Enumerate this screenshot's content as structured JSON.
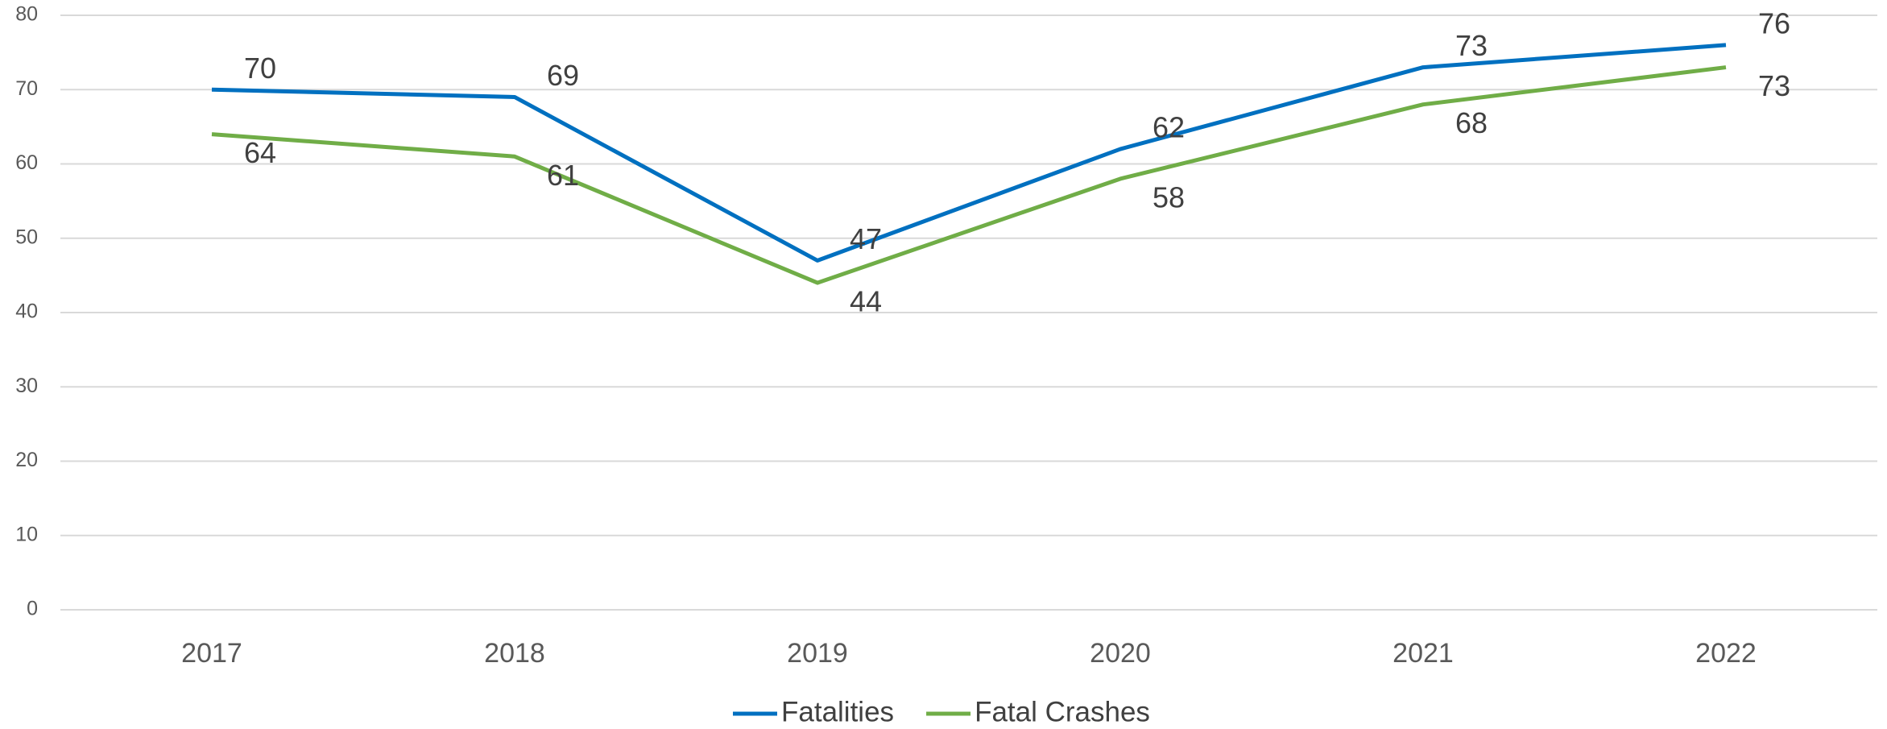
{
  "chart_data": {
    "type": "line",
    "categories": [
      "2017",
      "2018",
      "2019",
      "2020",
      "2021",
      "2022"
    ],
    "series": [
      {
        "name": "Fatalities",
        "color": "#0070c0",
        "values": [
          70,
          69,
          47,
          62,
          73,
          76
        ]
      },
      {
        "name": "Fatal Crashes",
        "color": "#70ad47",
        "values": [
          64,
          61,
          44,
          58,
          68,
          73
        ]
      }
    ],
    "ylim": [
      0,
      80
    ],
    "yticks": [
      0,
      10,
      20,
      30,
      40,
      50,
      60,
      70,
      80
    ],
    "grid": true,
    "legend": "bottom"
  }
}
